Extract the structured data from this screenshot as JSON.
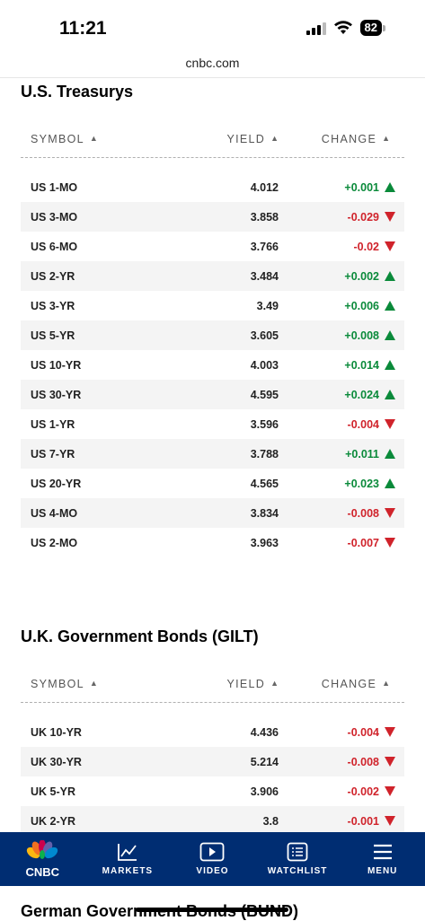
{
  "status_bar": {
    "time": "11:21",
    "battery": "82"
  },
  "browser": {
    "url": "cnbc.com"
  },
  "treasurys": {
    "title": "U.S. Treasurys",
    "headers": {
      "symbol": "SYMBOL",
      "yield": "YIELD",
      "change": "CHANGE"
    },
    "rows": [
      {
        "symbol": "US 1-MO",
        "yield": "4.012",
        "change": "+0.001",
        "direction": "up"
      },
      {
        "symbol": "US 3-MO",
        "yield": "3.858",
        "change": "-0.029",
        "direction": "down"
      },
      {
        "symbol": "US 6-MO",
        "yield": "3.766",
        "change": "-0.02",
        "direction": "down"
      },
      {
        "symbol": "US 2-YR",
        "yield": "3.484",
        "change": "+0.002",
        "direction": "up"
      },
      {
        "symbol": "US 3-YR",
        "yield": "3.49",
        "change": "+0.006",
        "direction": "up"
      },
      {
        "symbol": "US 5-YR",
        "yield": "3.605",
        "change": "+0.008",
        "direction": "up"
      },
      {
        "symbol": "US 10-YR",
        "yield": "4.003",
        "change": "+0.014",
        "direction": "up"
      },
      {
        "symbol": "US 30-YR",
        "yield": "4.595",
        "change": "+0.024",
        "direction": "up"
      },
      {
        "symbol": "US 1-YR",
        "yield": "3.596",
        "change": "-0.004",
        "direction": "down"
      },
      {
        "symbol": "US 7-YR",
        "yield": "3.788",
        "change": "+0.011",
        "direction": "up"
      },
      {
        "symbol": "US 20-YR",
        "yield": "4.565",
        "change": "+0.023",
        "direction": "up"
      },
      {
        "symbol": "US 4-MO",
        "yield": "3.834",
        "change": "-0.008",
        "direction": "down"
      },
      {
        "symbol": "US 2-MO",
        "yield": "3.963",
        "change": "-0.007",
        "direction": "down"
      }
    ]
  },
  "gilts": {
    "title": "U.K. Government Bonds (GILT)",
    "headers": {
      "symbol": "SYMBOL",
      "yield": "YIELD",
      "change": "CHANGE"
    },
    "rows": [
      {
        "symbol": "UK 10-YR",
        "yield": "4.436",
        "change": "-0.004",
        "direction": "down"
      },
      {
        "symbol": "UK 30-YR",
        "yield": "5.214",
        "change": "-0.008",
        "direction": "down"
      },
      {
        "symbol": "UK 5-YR",
        "yield": "3.906",
        "change": "-0.002",
        "direction": "down"
      },
      {
        "symbol": "UK 2-YR",
        "yield": "3.8",
        "change": "-0.001",
        "direction": "down"
      }
    ]
  },
  "bund": {
    "title": "German Government Bonds (BUND)"
  },
  "nav": {
    "logo_label": "CNBC",
    "items": [
      {
        "label": "MARKETS",
        "icon": "chart-icon"
      },
      {
        "label": "VIDEO",
        "icon": "play-icon"
      },
      {
        "label": "WATCHLIST",
        "icon": "list-icon"
      },
      {
        "label": "MENU",
        "icon": "hamburger-icon"
      }
    ]
  },
  "colors": {
    "up": "#0a8a3a",
    "down": "#d0232b",
    "nav_bg": "#002d72"
  }
}
